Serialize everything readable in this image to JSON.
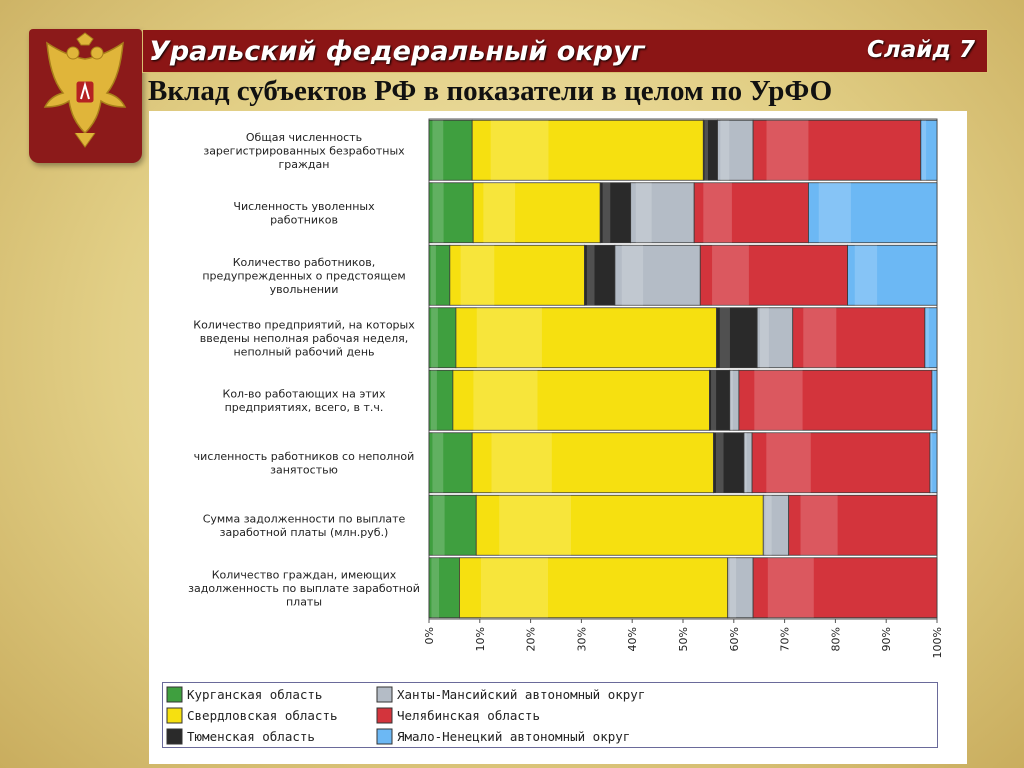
{
  "header": {
    "title": "Уральский федеральный округ",
    "slide": "Слайд 7"
  },
  "subtitle": "Вклад субъектов РФ в показатели в целом по УрФО",
  "colors": {
    "green": "#3f9f3f",
    "yellow": "#f6e010",
    "black": "#2a2a2a",
    "gray": "#b4bcc6",
    "red": "#d3343c",
    "blue": "#6cb8f4",
    "title_bar": "#8b1515"
  },
  "chart_data": {
    "type": "bar",
    "orientation": "horizontal",
    "stacked": "percent",
    "categories": [
      [
        "Общая численность",
        "зарегистрированных безработных",
        "граждан"
      ],
      [
        "Численность уволенных",
        "работников"
      ],
      [
        "Количество работников,",
        "предупрежденных о предстоящем",
        "увольнении"
      ],
      [
        "Количество предприятий, на которых",
        "введены неполная рабочая неделя,",
        "неполный рабочий день"
      ],
      [
        "Кол-во работающих на этих",
        "предприятиях, всего, в т.ч."
      ],
      [
        "численность работников сo неполной",
        "занятостью"
      ],
      [
        "Сумма задолженности по выплате",
        "заработной платы (млн.руб.)"
      ],
      [
        "Количество граждан, имеющих",
        "задолженность по выплате заработной",
        "платы"
      ]
    ],
    "series": [
      {
        "name": "Курганская область",
        "color": "#3f9f3f",
        "values": [
          8.5,
          8.7,
          4.1,
          5.3,
          4.7,
          8.5,
          9.3,
          6.0
        ]
      },
      {
        "name": "Свердловская область",
        "color": "#f6e010",
        "values": [
          45.5,
          25.0,
          26.5,
          51.3,
          50.5,
          47.5,
          56.5,
          52.8
        ]
      },
      {
        "name": "Тюменская область",
        "color": "#2a2a2a",
        "values": [
          2.8,
          6.0,
          6.0,
          8.0,
          4.0,
          6.0,
          0.0,
          0.0
        ]
      },
      {
        "name": "Ханты-Мансийский автономный округ",
        "color": "#b4bcc6",
        "values": [
          7.0,
          12.5,
          16.8,
          7.0,
          1.8,
          1.6,
          5.0,
          5.0
        ]
      },
      {
        "name": "Челябинская область",
        "color": "#d3343c",
        "values": [
          33.0,
          22.5,
          29.0,
          26.0,
          38.0,
          35.0,
          29.2,
          36.2
        ]
      },
      {
        "name": "Ямало-Ненецкий автономный округ",
        "color": "#6cb8f4",
        "values": [
          3.2,
          25.3,
          17.6,
          2.4,
          1.0,
          1.4,
          0.0,
          0.0
        ]
      }
    ],
    "xlim": [
      0,
      100
    ],
    "xticks": [
      "0%",
      "10%",
      "20%",
      "30%",
      "40%",
      "50%",
      "60%",
      "70%",
      "80%",
      "90%",
      "100%"
    ],
    "grid": false,
    "legend_position": "bottom"
  }
}
